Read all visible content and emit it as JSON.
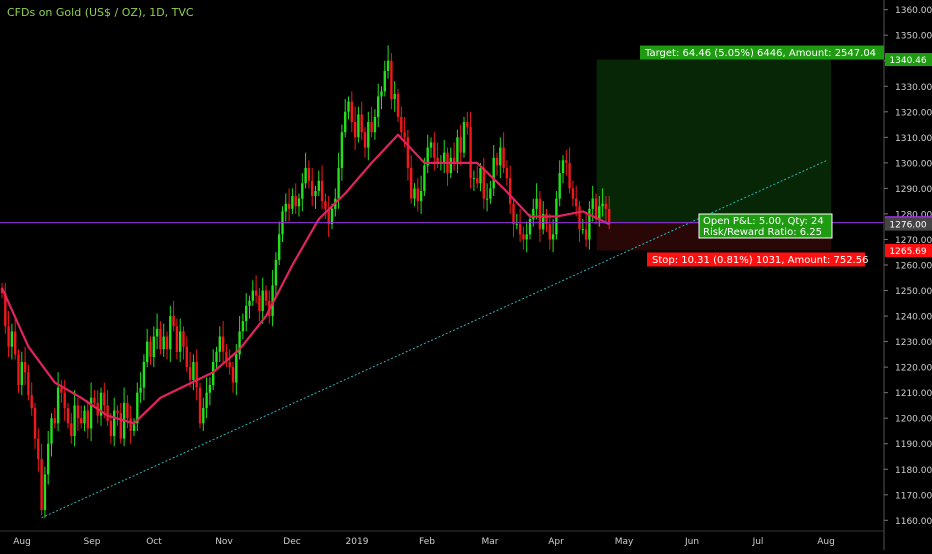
{
  "header": {
    "title": "CFDs on Gold (US$ / OZ), 1D, TVC"
  },
  "colors": {
    "background": "#000000",
    "up": "#22e01c",
    "down": "#f01818",
    "ma": "#e0245e",
    "trendline": "#2fb5b8",
    "hline": "#9a2fe0",
    "target_zone": "#062606",
    "stop_zone": "#2a0707",
    "axis_text": "#cfcfcf",
    "target_label": "#1f9b12",
    "stop_label": "#ff1010",
    "pnl_label": "#1f9b12"
  },
  "chart_data": {
    "type": "candlestick",
    "symbol": "CFDs on Gold (US$ / OZ)",
    "interval": "1D",
    "source": "TVC",
    "ylim": [
      1157,
      1363
    ],
    "y_ticks": [
      1160,
      1170,
      1180,
      1190,
      1200,
      1210,
      1220,
      1230,
      1240,
      1250,
      1260,
      1270,
      1280,
      1290,
      1300,
      1310,
      1320,
      1330,
      1340,
      1350,
      1360
    ],
    "x_ticks": [
      "Aug",
      "Sep",
      "Oct",
      "Nov",
      "Dec",
      "2019",
      "Feb",
      "Mar",
      "Apr",
      "May",
      "Jun",
      "Jul",
      "Aug"
    ],
    "series_close": [
      1249,
      1236,
      1228,
      1234,
      1225,
      1213,
      1222,
      1218,
      1209,
      1204,
      1192,
      1184,
      1164,
      1178,
      1190,
      1200,
      1198,
      1212,
      1210,
      1204,
      1198,
      1193,
      1205,
      1200,
      1198,
      1203,
      1196,
      1208,
      1206,
      1201,
      1210,
      1205,
      1199,
      1193,
      1203,
      1202,
      1192,
      1206,
      1200,
      1195,
      1198,
      1210,
      1212,
      1222,
      1230,
      1224,
      1232,
      1235,
      1227,
      1232,
      1227,
      1240,
      1236,
      1226,
      1234,
      1228,
      1220,
      1215,
      1222,
      1212,
      1198,
      1204,
      1210,
      1213,
      1222,
      1226,
      1232,
      1226,
      1222,
      1220,
      1214,
      1225,
      1234,
      1238,
      1244,
      1246,
      1250,
      1248,
      1242,
      1250,
      1246,
      1240,
      1252,
      1262,
      1272,
      1281,
      1284,
      1282,
      1287,
      1283,
      1286,
      1292,
      1298,
      1293,
      1287,
      1289,
      1293,
      1285,
      1282,
      1276,
      1282,
      1286,
      1298,
      1312,
      1320,
      1324,
      1316,
      1310,
      1319,
      1312,
      1306,
      1316,
      1312,
      1318,
      1326,
      1328,
      1336,
      1340,
      1325,
      1327,
      1318,
      1312,
      1310,
      1298,
      1286,
      1290,
      1285,
      1289,
      1299,
      1306,
      1308,
      1302,
      1300,
      1300,
      1304,
      1296,
      1302,
      1300,
      1310,
      1304,
      1316,
      1314,
      1294,
      1294,
      1292,
      1298,
      1286,
      1286,
      1290,
      1302,
      1299,
      1306,
      1298,
      1294,
      1284,
      1276,
      1276,
      1272,
      1270,
      1272,
      1278,
      1282,
      1286,
      1274,
      1280,
      1276,
      1270,
      1272,
      1286,
      1296,
      1301,
      1300,
      1290,
      1286,
      1283,
      1274,
      1274,
      1270,
      1282,
      1286,
      1278,
      1283,
      1284,
      1282,
      1276
    ],
    "moving_average": {
      "x_index": [
        0,
        8,
        16,
        24,
        32,
        40,
        48,
        56,
        64,
        72,
        80,
        88,
        96,
        104,
        112,
        120,
        128,
        136,
        144,
        152,
        160,
        168,
        176,
        184
      ],
      "values": [
        1251,
        1228,
        1214,
        1208,
        1201,
        1198,
        1208,
        1213,
        1218,
        1227,
        1240,
        1260,
        1278,
        1288,
        1300,
        1311,
        1300,
        1300,
        1300,
        1290,
        1279,
        1279,
        1281,
        1276
      ]
    },
    "trendline": {
      "from": {
        "index": 12,
        "value": 1161
      },
      "to": {
        "index": 250,
        "value": 1301
      }
    },
    "horizontal_line": 1276.58,
    "position": {
      "entry": 1276.0,
      "target": 1340.46,
      "stop": 1265.69,
      "start_index": 179,
      "end_index": 250
    },
    "price_labels": [
      "1340.46",
      "1276.58",
      "1276.00",
      "1265.69"
    ]
  },
  "position_labels": {
    "target": "Target: 64.46 (5.05%) 6446, Amount: 2547.04",
    "stop": "Stop: 10.31 (0.81%) 1031, Amount: 752.56",
    "pnl_line1": "Open P&L: 5.00, Qty: 24",
    "pnl_line2": "Risk/Reward Ratio: 6.25"
  }
}
